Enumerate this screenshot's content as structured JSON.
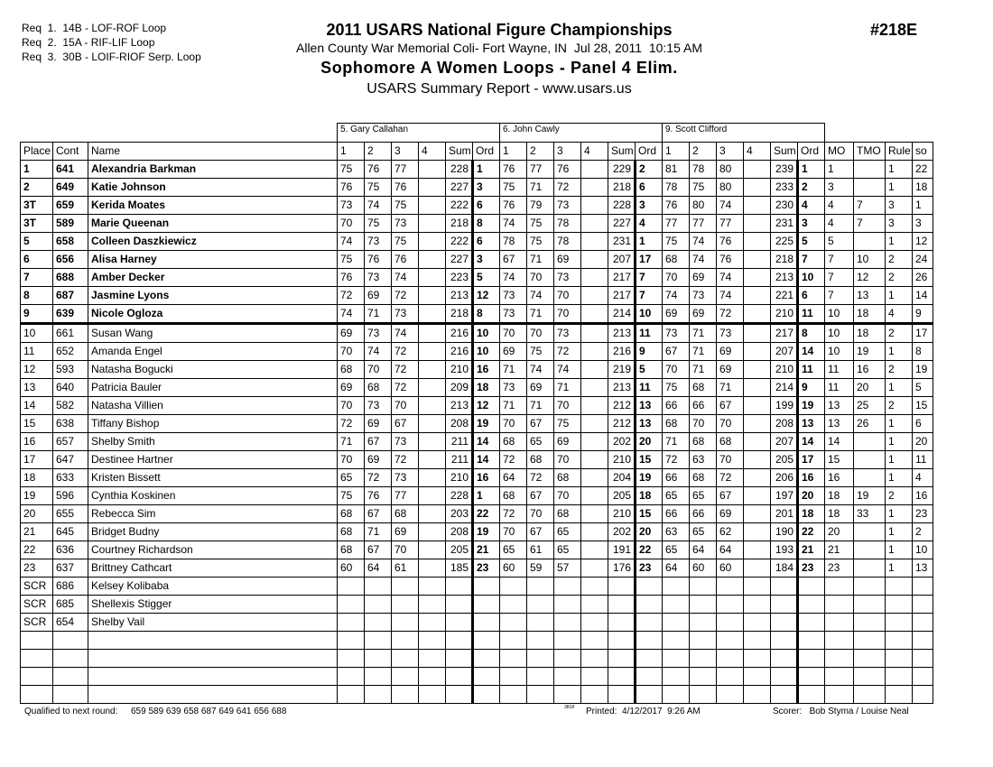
{
  "header": {
    "requirements": [
      "Req  1.  14B - LOF-ROF Loop",
      "Req  2.  15A - RIF-LIF Loop",
      "Req  3.  30B - LOIF-RIOF Serp. Loop"
    ],
    "title": "2011 USARS National Figure Championships",
    "id": "#218E",
    "location": "Allen County War Memorial Coli- Fort Wayne, IN  Jul 28, 2011  10:15 AM",
    "event": "Sophomore A Women Loops - Panel 4 Elim.",
    "report": "USARS Summary Report - www.usars.us"
  },
  "table": {
    "judges": [
      "5.  Gary Callahan",
      "6.  John Cawly",
      "9.  Scott Clifford"
    ],
    "columns": [
      "Place",
      "Cont",
      "Name",
      "1",
      "2",
      "3",
      "4",
      "Sum",
      "Ord",
      "1",
      "2",
      "3",
      "4",
      "Sum",
      "Ord",
      "1",
      "2",
      "3",
      "4",
      "Sum",
      "Ord",
      "MO",
      "TMO",
      "Rule",
      "so"
    ],
    "rows": [
      [
        1,
        641,
        "Alexandria Barkman",
        75,
        76,
        77,
        null,
        228,
        1,
        76,
        77,
        76,
        null,
        229,
        2,
        81,
        78,
        80,
        null,
        239,
        1,
        1,
        null,
        1,
        22
      ],
      [
        2,
        649,
        "Katie Johnson",
        76,
        75,
        76,
        null,
        227,
        3,
        75,
        71,
        72,
        null,
        218,
        6,
        78,
        75,
        80,
        null,
        233,
        2,
        3,
        null,
        1,
        18
      ],
      [
        "3T",
        659,
        "Kerida Moates",
        73,
        74,
        75,
        null,
        222,
        6,
        76,
        79,
        73,
        null,
        228,
        3,
        76,
        80,
        74,
        null,
        230,
        4,
        4,
        7,
        3,
        1
      ],
      [
        "3T",
        589,
        "Marie Queenan",
        70,
        75,
        73,
        null,
        218,
        8,
        74,
        75,
        78,
        null,
        227,
        4,
        77,
        77,
        77,
        null,
        231,
        3,
        4,
        7,
        3,
        3
      ],
      [
        5,
        658,
        "Colleen Daszkiewicz",
        74,
        73,
        75,
        null,
        222,
        6,
        78,
        75,
        78,
        null,
        231,
        1,
        75,
        74,
        76,
        null,
        225,
        5,
        5,
        null,
        1,
        12
      ],
      [
        6,
        656,
        "Alisa Harney",
        75,
        76,
        76,
        null,
        227,
        3,
        67,
        71,
        69,
        null,
        207,
        17,
        68,
        74,
        76,
        null,
        218,
        7,
        7,
        10,
        2,
        24
      ],
      [
        7,
        688,
        "Amber Decker",
        76,
        73,
        74,
        null,
        223,
        5,
        74,
        70,
        73,
        null,
        217,
        7,
        70,
        69,
        74,
        null,
        213,
        10,
        7,
        12,
        2,
        26
      ],
      [
        8,
        687,
        "Jasmine Lyons",
        72,
        69,
        72,
        null,
        213,
        12,
        73,
        74,
        70,
        null,
        217,
        7,
        74,
        73,
        74,
        null,
        221,
        6,
        7,
        13,
        1,
        14
      ],
      [
        9,
        639,
        "Nicole Ogloza",
        74,
        71,
        73,
        null,
        218,
        8,
        73,
        71,
        70,
        null,
        214,
        10,
        69,
        69,
        72,
        null,
        210,
        11,
        10,
        18,
        4,
        9
      ],
      [
        10,
        661,
        "Susan Wang",
        69,
        73,
        74,
        null,
        216,
        10,
        70,
        70,
        73,
        null,
        213,
        11,
        73,
        71,
        73,
        null,
        217,
        8,
        10,
        18,
        2,
        17
      ],
      [
        11,
        652,
        "Amanda Engel",
        70,
        74,
        72,
        null,
        216,
        10,
        69,
        75,
        72,
        null,
        216,
        9,
        67,
        71,
        69,
        null,
        207,
        14,
        10,
        19,
        1,
        8
      ],
      [
        12,
        593,
        "Natasha Bogucki",
        68,
        70,
        72,
        null,
        210,
        16,
        71,
        74,
        74,
        null,
        219,
        5,
        70,
        71,
        69,
        null,
        210,
        11,
        11,
        16,
        2,
        19
      ],
      [
        13,
        640,
        "Patricia Bauler",
        69,
        68,
        72,
        null,
        209,
        18,
        73,
        69,
        71,
        null,
        213,
        11,
        75,
        68,
        71,
        null,
        214,
        9,
        11,
        20,
        1,
        5
      ],
      [
        14,
        582,
        "Natasha Villien",
        70,
        73,
        70,
        null,
        213,
        12,
        71,
        71,
        70,
        null,
        212,
        13,
        66,
        66,
        67,
        null,
        199,
        19,
        13,
        25,
        2,
        15
      ],
      [
        15,
        638,
        "Tiffany Bishop",
        72,
        69,
        67,
        null,
        208,
        19,
        70,
        67,
        75,
        null,
        212,
        13,
        68,
        70,
        70,
        null,
        208,
        13,
        13,
        26,
        1,
        6
      ],
      [
        16,
        657,
        "Shelby Smith",
        71,
        67,
        73,
        null,
        211,
        14,
        68,
        65,
        69,
        null,
        202,
        20,
        71,
        68,
        68,
        null,
        207,
        14,
        14,
        null,
        1,
        20
      ],
      [
        17,
        647,
        "Destinee Hartner",
        70,
        69,
        72,
        null,
        211,
        14,
        72,
        68,
        70,
        null,
        210,
        15,
        72,
        63,
        70,
        null,
        205,
        17,
        15,
        null,
        1,
        11
      ],
      [
        18,
        633,
        "Kristen Bissett",
        65,
        72,
        73,
        null,
        210,
        16,
        64,
        72,
        68,
        null,
        204,
        19,
        66,
        68,
        72,
        null,
        206,
        16,
        16,
        null,
        1,
        4
      ],
      [
        19,
        596,
        "Cynthia Koskinen",
        75,
        76,
        77,
        null,
        228,
        1,
        68,
        67,
        70,
        null,
        205,
        18,
        65,
        65,
        67,
        null,
        197,
        20,
        18,
        19,
        2,
        16
      ],
      [
        20,
        655,
        "Rebecca Sim",
        68,
        67,
        68,
        null,
        203,
        22,
        72,
        70,
        68,
        null,
        210,
        15,
        66,
        66,
        69,
        null,
        201,
        18,
        18,
        33,
        1,
        23
      ],
      [
        21,
        645,
        "Bridget Budny",
        68,
        71,
        69,
        null,
        208,
        19,
        70,
        67,
        65,
        null,
        202,
        20,
        63,
        65,
        62,
        null,
        190,
        22,
        20,
        null,
        1,
        2
      ],
      [
        22,
        636,
        "Courtney Richardson",
        68,
        67,
        70,
        null,
        205,
        21,
        65,
        61,
        65,
        null,
        191,
        22,
        65,
        64,
        64,
        null,
        193,
        21,
        21,
        null,
        1,
        10
      ],
      [
        23,
        637,
        "Brittney Cathcart",
        60,
        64,
        61,
        null,
        185,
        23,
        60,
        59,
        57,
        null,
        176,
        23,
        64,
        60,
        60,
        null,
        184,
        23,
        23,
        null,
        1,
        13
      ],
      [
        "SCR",
        686,
        "Kelsey Kolibaba"
      ],
      [
        "SCR",
        685,
        "Shellexis Stigger"
      ],
      [
        "SCR",
        654,
        "Shelby Vail"
      ]
    ]
  },
  "footer": {
    "qualified_label": "Qualified to next round:",
    "qualified": "659 589 639 658 687 649 641 656 688",
    "code": "3818",
    "printed": "Printed:  4/12/2017  9:26 AM",
    "scorer": "Scorer:   Bob Styma / Louise Neal"
  }
}
